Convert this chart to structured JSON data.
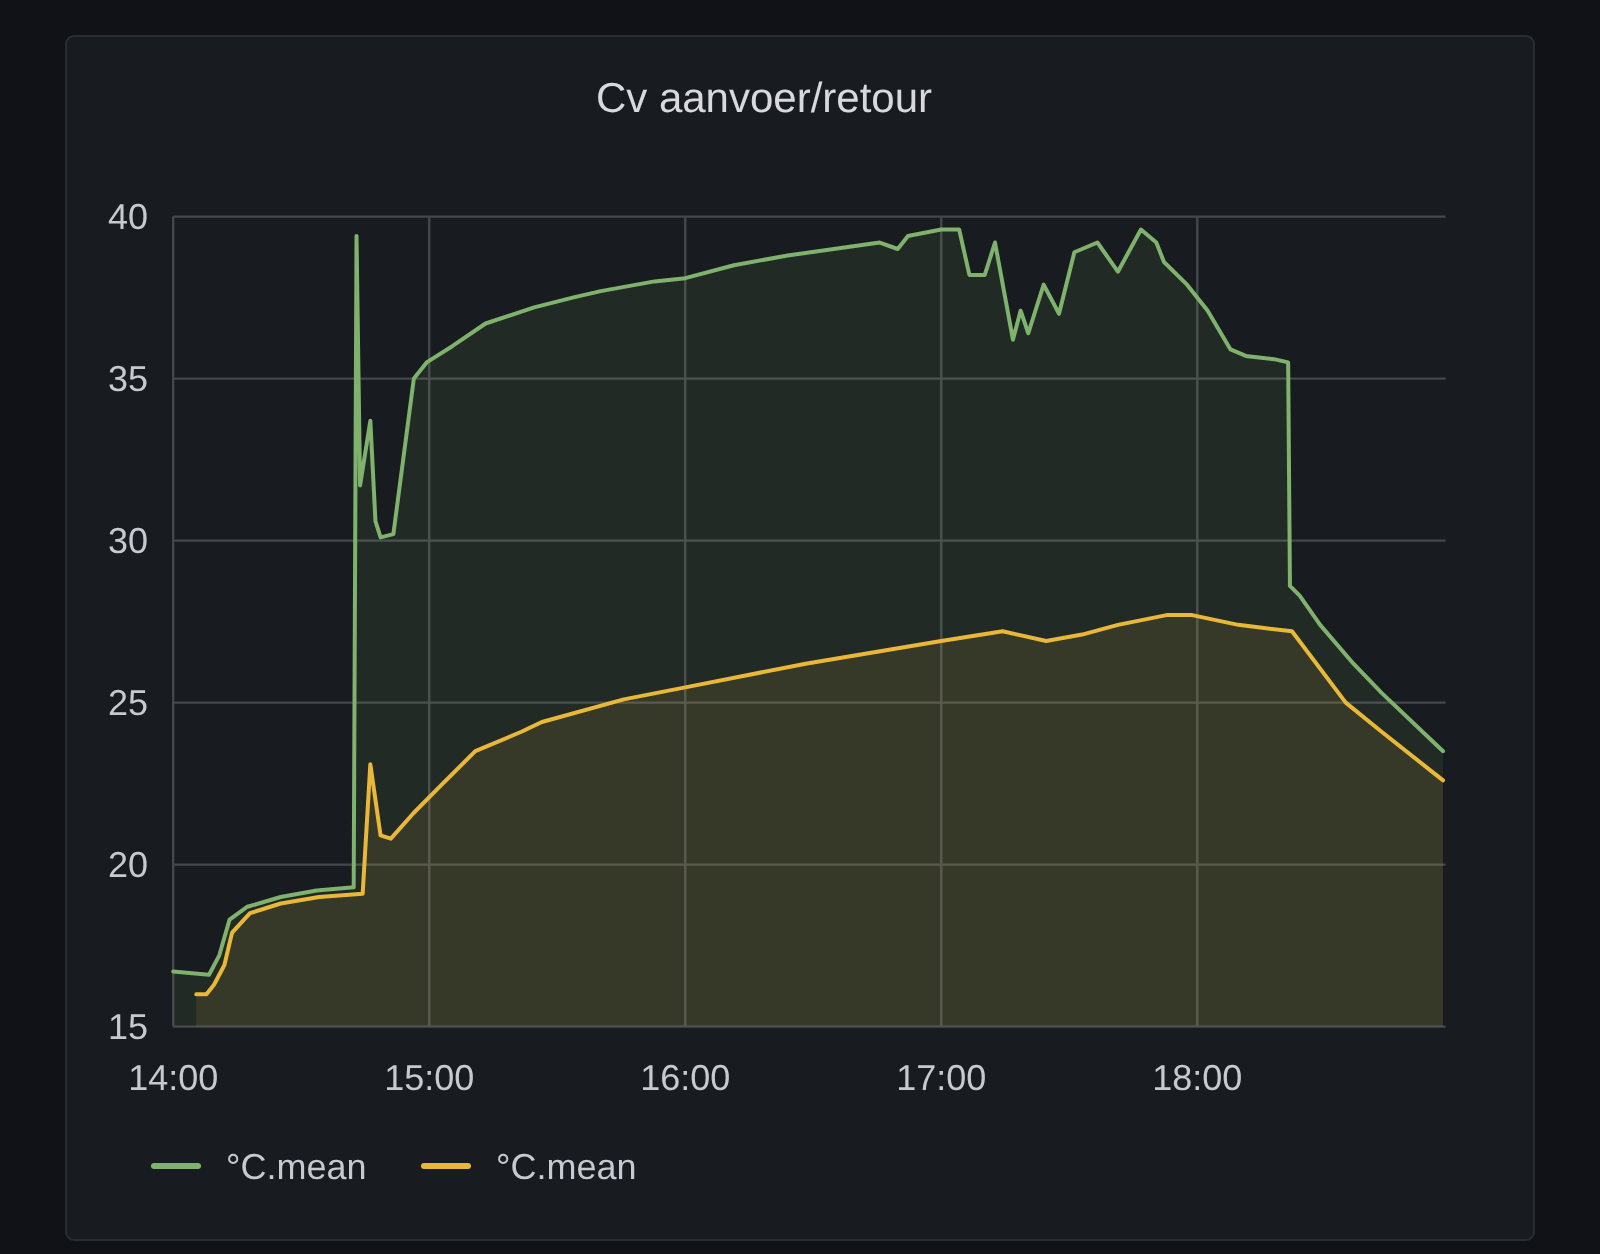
{
  "chart_data": {
    "type": "area",
    "title": "Cv aanvoer/retour",
    "series": [
      {
        "name": "°C.mean",
        "color": "#7eb26d",
        "x": [
          14.0,
          14.14,
          14.18,
          14.22,
          14.29,
          14.42,
          14.56,
          14.705,
          14.716,
          14.73,
          14.77,
          14.79,
          14.81,
          14.86,
          14.94,
          14.99,
          15.09,
          15.22,
          15.41,
          15.56,
          15.67,
          15.88,
          16.0,
          16.19,
          16.4,
          16.58,
          16.76,
          16.83,
          16.87,
          17.0,
          17.07,
          17.11,
          17.17,
          17.21,
          17.28,
          17.31,
          17.34,
          17.4,
          17.46,
          17.52,
          17.61,
          17.69,
          17.78,
          17.84,
          17.87,
          17.96,
          18.04,
          18.13,
          18.19,
          18.3,
          18.355,
          18.362,
          18.4,
          18.48,
          18.61,
          18.72,
          18.96
        ],
        "values": [
          16.7,
          16.6,
          17.2,
          18.3,
          18.7,
          19.0,
          19.2,
          19.3,
          39.4,
          31.7,
          33.7,
          30.6,
          30.1,
          30.2,
          35.0,
          35.5,
          36.0,
          36.7,
          37.2,
          37.5,
          37.7,
          38.0,
          38.1,
          38.5,
          38.8,
          39.0,
          39.2,
          39.0,
          39.4,
          39.6,
          39.6,
          38.2,
          38.2,
          39.2,
          36.2,
          37.1,
          36.4,
          37.9,
          37.0,
          38.9,
          39.2,
          38.3,
          39.6,
          39.2,
          38.6,
          37.9,
          37.1,
          35.9,
          35.7,
          35.6,
          35.5,
          28.6,
          28.3,
          27.4,
          26.2,
          25.3,
          23.5
        ]
      },
      {
        "name": "°C.mean",
        "color": "#eab839",
        "x": [
          14.09,
          14.13,
          14.16,
          14.2,
          14.23,
          14.3,
          14.42,
          14.57,
          14.74,
          14.77,
          14.81,
          14.85,
          14.94,
          15.04,
          15.18,
          15.36,
          15.44,
          15.76,
          16.02,
          16.47,
          17.0,
          17.24,
          17.41,
          17.55,
          17.69,
          17.88,
          17.98,
          18.16,
          18.37,
          18.58,
          18.72,
          18.96
        ],
        "values": [
          16.0,
          16.0,
          16.3,
          16.9,
          17.9,
          18.5,
          18.8,
          19.0,
          19.1,
          23.1,
          20.9,
          20.8,
          21.6,
          22.4,
          23.5,
          24.1,
          24.4,
          25.1,
          25.5,
          26.2,
          26.9,
          27.2,
          26.9,
          27.1,
          27.4,
          27.7,
          27.7,
          27.4,
          27.2,
          25.0,
          24.1,
          22.6
        ]
      }
    ],
    "xlim": [
      14,
      18.97
    ],
    "xticks": [
      {
        "value": 14,
        "label": "14:00"
      },
      {
        "value": 15,
        "label": "15:00"
      },
      {
        "value": 16,
        "label": "16:00"
      },
      {
        "value": 17,
        "label": "17:00"
      },
      {
        "value": 18,
        "label": "18:00"
      }
    ],
    "ylim": [
      15,
      40
    ],
    "yticks": [
      15,
      20,
      25,
      30,
      35,
      40
    ],
    "grid": true,
    "legend": "bottom left"
  }
}
